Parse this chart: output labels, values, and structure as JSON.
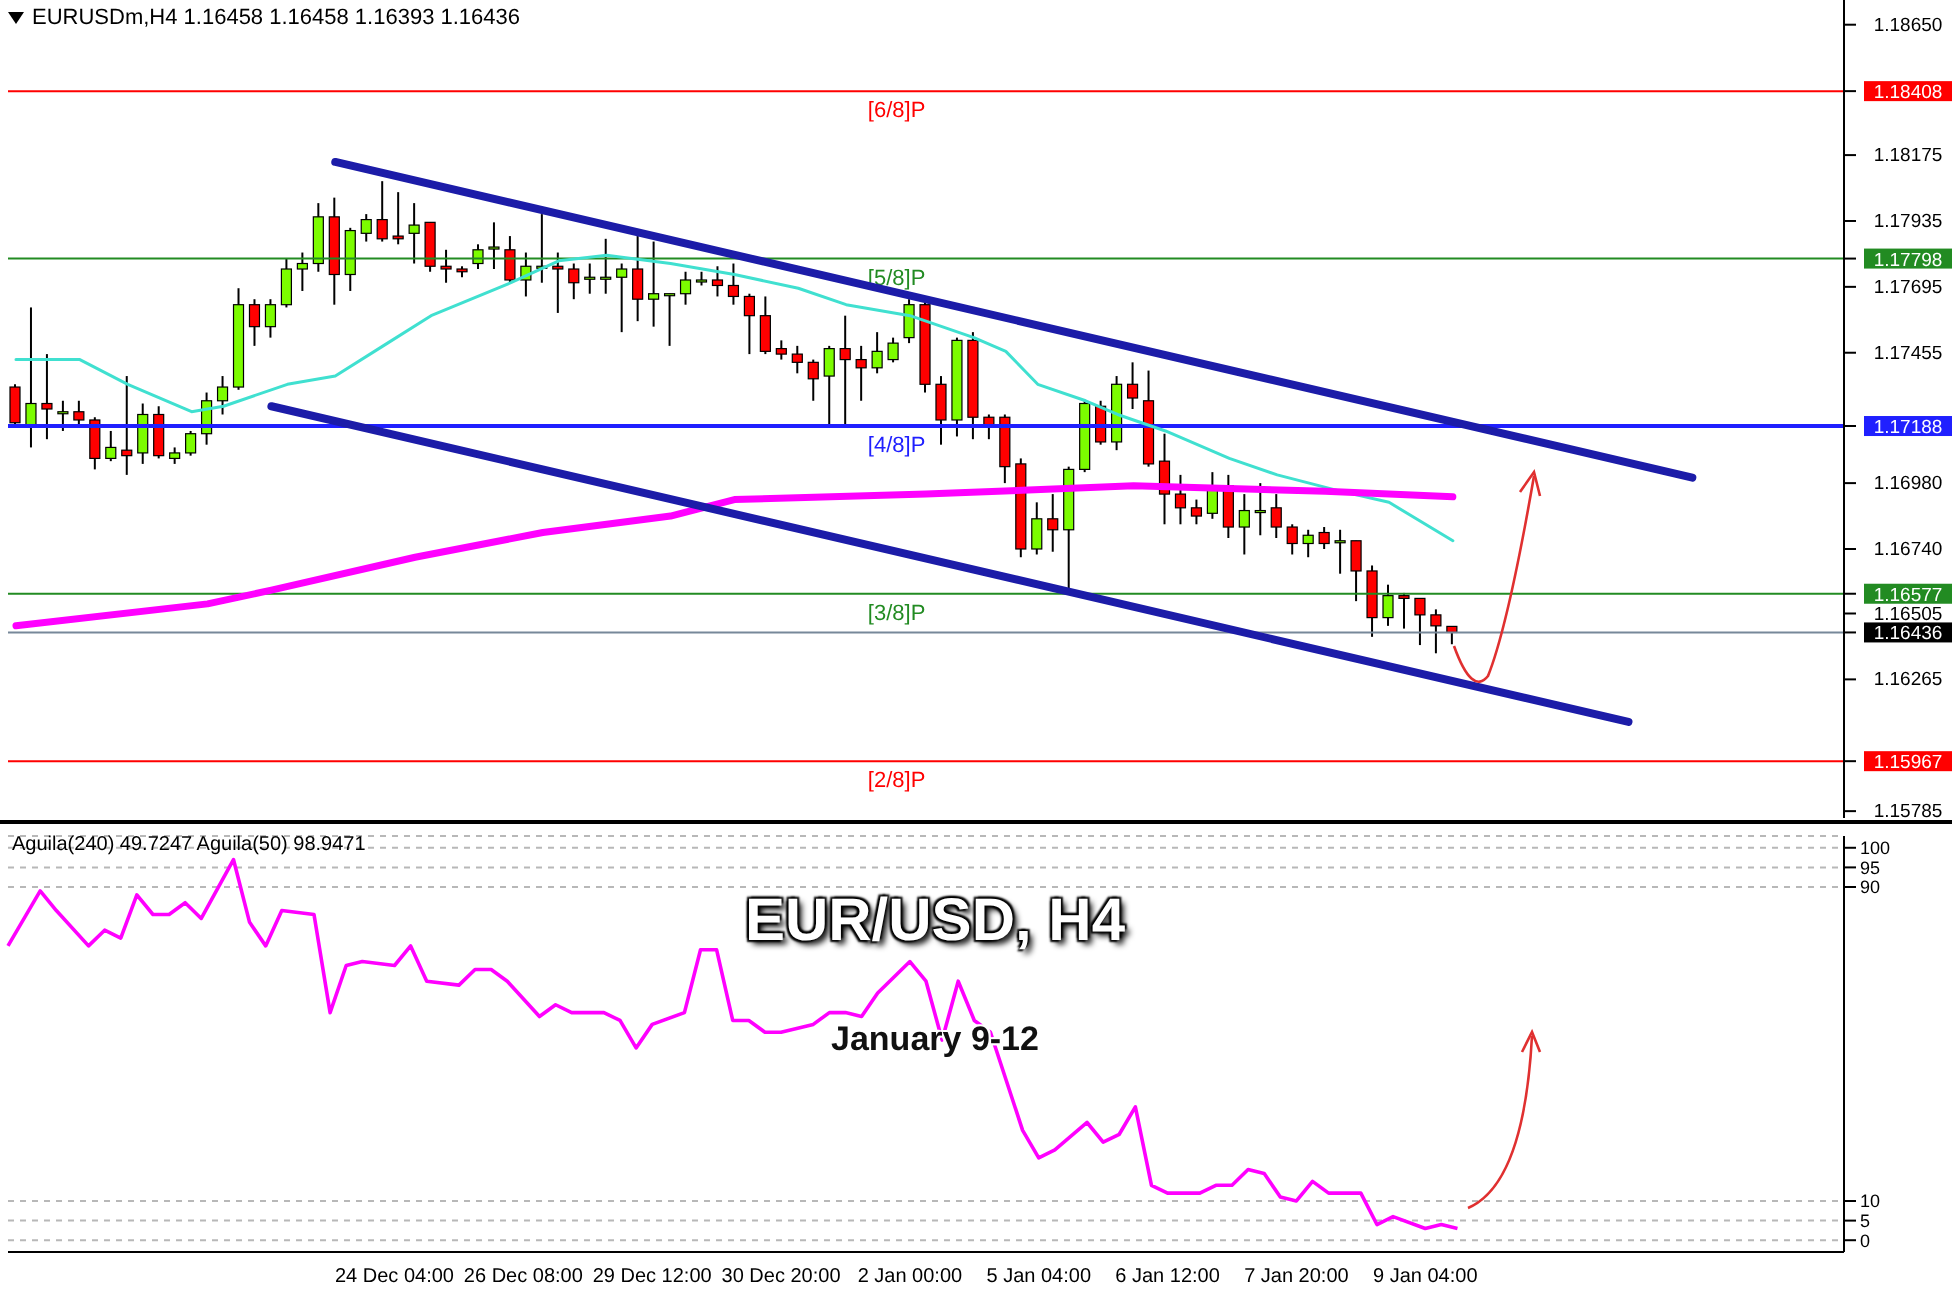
{
  "chart_data": [
    {
      "type": "candlestick",
      "title": "EURUSDm,H4  1.16458 1.16458 1.16393 1.16436",
      "tick_labels": "y",
      "grid": false,
      "legend": false,
      "categories": [
        null,
        null,
        null,
        null,
        null,
        null,
        null,
        null,
        null,
        null,
        null,
        null,
        null,
        null,
        null,
        null,
        null,
        null,
        null,
        null,
        null,
        null,
        null,
        null,
        null,
        null,
        null,
        null,
        null,
        null,
        null,
        null,
        null,
        null,
        null,
        null,
        null,
        null,
        null,
        null,
        null,
        null,
        null,
        null,
        null,
        null,
        null,
        null,
        null,
        null,
        null,
        null,
        null,
        null,
        null,
        null,
        null,
        null,
        null,
        null,
        null,
        null,
        null,
        null,
        null,
        null,
        null,
        null,
        null,
        null,
        null,
        null,
        null,
        null,
        null,
        null,
        null,
        null,
        null,
        null,
        null,
        null,
        null,
        null,
        null,
        null,
        null,
        null,
        null,
        null,
        null,
        null,
        null,
        null,
        null,
        null,
        null,
        null,
        null,
        null,
        null,
        null,
        null,
        null,
        null,
        null,
        null,
        null,
        null,
        null,
        null,
        null,
        null,
        null,
        null
      ],
      "ohlc": [
        [
          1.1733,
          1.1734,
          1.1719,
          1.172
        ],
        [
          1.1719,
          1.1762,
          1.1711,
          1.1727
        ],
        [
          1.1727,
          1.1745,
          1.1714,
          1.1725
        ],
        [
          1.1724,
          1.1728,
          1.1717,
          1.1724
        ],
        [
          1.1724,
          1.1728,
          1.1719,
          1.1721
        ],
        [
          1.1721,
          1.1722,
          1.1703,
          1.1707
        ],
        [
          1.1707,
          1.1717,
          1.1706,
          1.1711
        ],
        [
          1.171,
          1.1737,
          1.1701,
          1.1708
        ],
        [
          1.1709,
          1.1727,
          1.1705,
          1.1723
        ],
        [
          1.1723,
          1.1726,
          1.1707,
          1.1708
        ],
        [
          1.1707,
          1.1711,
          1.1705,
          1.1709
        ],
        [
          1.1709,
          1.1717,
          1.1708,
          1.1716
        ],
        [
          1.1716,
          1.1731,
          1.1712,
          1.1728
        ],
        [
          1.1728,
          1.1737,
          1.1723,
          1.1733
        ],
        [
          1.1733,
          1.1769,
          1.1732,
          1.1763
        ],
        [
          1.1763,
          1.1765,
          1.1748,
          1.1755
        ],
        [
          1.1755,
          1.1765,
          1.1751,
          1.1763
        ],
        [
          1.1763,
          1.178,
          1.1762,
          1.1776
        ],
        [
          1.1776,
          1.1782,
          1.1768,
          1.1778
        ],
        [
          1.1778,
          1.18,
          1.1775,
          1.1795
        ],
        [
          1.1795,
          1.1802,
          1.1763,
          1.1774
        ],
        [
          1.1774,
          1.1791,
          1.1768,
          1.179
        ],
        [
          1.1789,
          1.1796,
          1.1786,
          1.1794
        ],
        [
          1.1794,
          1.1808,
          1.1786,
          1.1787
        ],
        [
          1.1788,
          1.1804,
          1.1785,
          1.1787
        ],
        [
          1.1789,
          1.18,
          1.1778,
          1.1792
        ],
        [
          1.1793,
          1.1793,
          1.1775,
          1.1777
        ],
        [
          1.1777,
          1.1783,
          1.1771,
          1.1776
        ],
        [
          1.1776,
          1.1777,
          1.1773,
          1.1775
        ],
        [
          1.1778,
          1.1785,
          1.1776,
          1.1783
        ],
        [
          1.1784,
          1.1793,
          1.1776,
          1.1784
        ],
        [
          1.1783,
          1.1788,
          1.1771,
          1.1772
        ],
        [
          1.1772,
          1.1782,
          1.1766,
          1.1777
        ],
        [
          1.1777,
          1.1796,
          1.1771,
          1.1777
        ],
        [
          1.1777,
          1.1782,
          1.176,
          1.1776
        ],
        [
          1.1776,
          1.1778,
          1.1765,
          1.1771
        ],
        [
          1.1773,
          1.1778,
          1.1767,
          1.1773
        ],
        [
          1.1773,
          1.1787,
          1.1767,
          1.1773
        ],
        [
          1.1773,
          1.1778,
          1.1753,
          1.1776
        ],
        [
          1.1776,
          1.1788,
          1.1757,
          1.1765
        ],
        [
          1.1765,
          1.1786,
          1.1755,
          1.1767
        ],
        [
          1.1767,
          1.1767,
          1.1748,
          1.1767
        ],
        [
          1.1767,
          1.1775,
          1.1763,
          1.1772
        ],
        [
          1.1772,
          1.1775,
          1.177,
          1.1772
        ],
        [
          1.1772,
          1.1777,
          1.1766,
          1.177
        ],
        [
          1.177,
          1.1778,
          1.1763,
          1.1766
        ],
        [
          1.1766,
          1.1767,
          1.1745,
          1.1759
        ],
        [
          1.1759,
          1.1766,
          1.1745,
          1.1746
        ],
        [
          1.1747,
          1.175,
          1.1743,
          1.1745
        ],
        [
          1.1745,
          1.1748,
          1.1738,
          1.1742
        ],
        [
          1.1742,
          1.1743,
          1.1728,
          1.1736
        ],
        [
          1.1737,
          1.1748,
          1.1719,
          1.1747
        ],
        [
          1.1747,
          1.1759,
          1.1719,
          1.1743
        ],
        [
          1.1743,
          1.1748,
          1.1728,
          1.174
        ],
        [
          1.174,
          1.1753,
          1.1738,
          1.1746
        ],
        [
          1.1743,
          1.1751,
          1.1742,
          1.1749
        ],
        [
          1.1751,
          1.1765,
          1.1749,
          1.1763
        ],
        [
          1.1763,
          1.1765,
          1.1731,
          1.1734
        ],
        [
          1.1734,
          1.1737,
          1.1712,
          1.1721
        ],
        [
          1.1721,
          1.1751,
          1.1715,
          1.175
        ],
        [
          1.175,
          1.1753,
          1.1714,
          1.1722
        ],
        [
          1.1722,
          1.1723,
          1.1714,
          1.1719
        ],
        [
          1.1722,
          1.1723,
          1.1698,
          1.1704
        ],
        [
          1.1705,
          1.1707,
          1.1671,
          1.1674
        ],
        [
          1.1674,
          1.1691,
          1.1672,
          1.1685
        ],
        [
          1.1685,
          1.1694,
          1.1673,
          1.1681
        ],
        [
          1.1681,
          1.1704,
          1.1659,
          1.1703
        ],
        [
          1.1703,
          1.1728,
          1.1702,
          1.1727
        ],
        [
          1.1726,
          1.1728,
          1.1712,
          1.1713
        ],
        [
          1.1713,
          1.1737,
          1.171,
          1.1734
        ],
        [
          1.1734,
          1.1742,
          1.1725,
          1.1729
        ],
        [
          1.1728,
          1.1739,
          1.1704,
          1.1705
        ],
        [
          1.1706,
          1.1716,
          1.1683,
          1.1694
        ],
        [
          1.1694,
          1.1701,
          1.1683,
          1.1689
        ],
        [
          1.1689,
          1.1692,
          1.1683,
          1.1686
        ],
        [
          1.1687,
          1.1702,
          1.1685,
          1.1697
        ],
        [
          1.1697,
          1.1701,
          1.1678,
          1.1682
        ],
        [
          1.1682,
          1.1694,
          1.1672,
          1.1688
        ],
        [
          1.1688,
          1.1698,
          1.1679,
          1.1688
        ],
        [
          1.1689,
          1.1694,
          1.1678,
          1.1682
        ],
        [
          1.1682,
          1.1683,
          1.1672,
          1.1676
        ],
        [
          1.1676,
          1.1681,
          1.1671,
          1.1679
        ],
        [
          1.168,
          1.1682,
          1.1674,
          1.1676
        ],
        [
          1.1677,
          1.1681,
          1.1665,
          1.1677
        ],
        [
          1.1677,
          1.1677,
          1.1655,
          1.1666
        ],
        [
          1.1666,
          1.1668,
          1.1642,
          1.1649
        ],
        [
          1.1649,
          1.1661,
          1.1646,
          1.1657
        ],
        [
          1.1657,
          1.1658,
          1.1645,
          1.1656
        ],
        [
          1.1656,
          1.1656,
          1.1639,
          1.165
        ],
        [
          1.165,
          1.1652,
          1.1636,
          1.1646
        ],
        [
          1.16458,
          1.16458,
          1.16393,
          1.16436
        ],
        null,
        null,
        null,
        null,
        null,
        null,
        null,
        null,
        null,
        null,
        null,
        null,
        null,
        null,
        null,
        null,
        null,
        null,
        null,
        null,
        null,
        null,
        null,
        null
      ],
      "series": [
        {
          "type": "line",
          "color": "#40e0d0",
          "values": [
            1.1743,
            null,
            null,
            null,
            1.1743,
            null,
            null,
            1.1734,
            null,
            null,
            null,
            1.1724,
            null,
            1.1726,
            null,
            null,
            null,
            1.1734,
            null,
            null,
            1.1737,
            null,
            null,
            1.1748,
            null,
            null,
            1.1759,
            null,
            null,
            null,
            null,
            1.1771,
            null,
            null,
            1.1779,
            null,
            null,
            1.1781,
            null,
            null,
            null,
            1.1778,
            null,
            null,
            null,
            1.1774,
            null,
            null,
            null,
            1.1769,
            null,
            null,
            1.1763,
            null,
            null,
            null,
            1.1759,
            null,
            null,
            null,
            1.1751,
            null,
            1.1746,
            null,
            1.1734,
            null,
            null,
            1.1728,
            null,
            1.1723,
            null,
            null,
            1.1717,
            null,
            null,
            null,
            1.1707,
            null,
            null,
            1.1701,
            null,
            null,
            null,
            1.1695,
            null,
            null,
            1.1691,
            null,
            null,
            null,
            1.1677,
            null,
            null,
            null,
            null,
            null,
            null,
            null,
            null,
            null,
            null,
            null,
            null,
            null,
            null,
            null,
            null,
            null,
            null,
            null,
            null,
            null,
            null,
            null,
            null
          ]
        },
        {
          "type": "line",
          "color": "#ff00ff",
          "values": [
            1.1646,
            null,
            null,
            null,
            null,
            null,
            null,
            null,
            null,
            null,
            null,
            null,
            1.1654,
            null,
            null,
            null,
            1.1659,
            null,
            null,
            null,
            null,
            null,
            null,
            null,
            null,
            1.1671,
            null,
            null,
            null,
            null,
            null,
            null,
            null,
            1.168,
            null,
            null,
            null,
            null,
            null,
            null,
            null,
            1.1686,
            null,
            null,
            null,
            1.1692,
            null,
            null,
            null,
            null,
            null,
            null,
            null,
            null,
            null,
            null,
            null,
            1.1694,
            null,
            null,
            null,
            null,
            null,
            null,
            null,
            null,
            null,
            null,
            null,
            null,
            1.1697,
            null,
            null,
            null,
            null,
            null,
            null,
            null,
            null,
            null,
            null,
            null,
            1.1695,
            null,
            null,
            null,
            null,
            null,
            null,
            null,
            1.1693,
            null,
            null,
            null,
            null,
            null,
            null,
            null,
            null,
            null,
            null,
            null,
            null,
            null,
            null,
            null,
            null,
            null,
            null,
            null,
            null,
            null,
            null,
            null,
            null
          ]
        },
        {
          "type": "line",
          "color": "#1c1ca8",
          "values": [
            null,
            null,
            null,
            null,
            null,
            null,
            null,
            null,
            null,
            null,
            null,
            null,
            null,
            null,
            null,
            null,
            null,
            null,
            null,
            null,
            1.1815,
            null,
            null,
            null,
            null,
            null,
            null,
            null,
            null,
            null,
            null,
            null,
            null,
            null,
            null,
            null,
            null,
            null,
            null,
            null,
            null,
            null,
            null,
            null,
            null,
            null,
            null,
            null,
            null,
            null,
            null,
            null,
            null,
            null,
            null,
            null,
            null,
            null,
            null,
            null,
            null,
            null,
            null,
            null,
            null,
            null,
            null,
            null,
            null,
            null,
            null,
            null,
            null,
            null,
            null,
            null,
            null,
            null,
            null,
            null,
            null,
            null,
            null,
            null,
            null,
            null,
            null,
            null,
            null,
            null,
            null,
            null,
            null,
            null,
            null,
            null,
            null,
            null,
            null,
            null,
            null,
            null,
            null,
            null,
            null,
            1.17,
            null,
            null,
            null,
            null,
            null,
            null,
            null,
            null,
            null
          ]
        },
        {
          "type": "line",
          "color": "#1c1ca8",
          "values": [
            null,
            null,
            null,
            null,
            null,
            null,
            null,
            null,
            null,
            null,
            null,
            null,
            null,
            null,
            null,
            null,
            1.1726,
            null,
            null,
            null,
            null,
            null,
            null,
            null,
            null,
            null,
            null,
            null,
            null,
            null,
            null,
            null,
            null,
            null,
            null,
            null,
            null,
            null,
            null,
            null,
            null,
            null,
            null,
            null,
            null,
            null,
            null,
            null,
            null,
            null,
            null,
            null,
            null,
            null,
            null,
            null,
            null,
            null,
            null,
            null,
            null,
            null,
            null,
            null,
            null,
            null,
            null,
            null,
            null,
            null,
            null,
            null,
            null,
            null,
            null,
            null,
            null,
            null,
            null,
            null,
            null,
            null,
            null,
            null,
            null,
            null,
            null,
            null,
            null,
            null,
            null,
            null,
            null,
            null,
            null,
            null,
            null,
            null,
            null,
            null,
            null,
            1.1611,
            null,
            null,
            null,
            null,
            null,
            null,
            null,
            null,
            null,
            null,
            null,
            null,
            null
          ]
        }
      ],
      "ylim": [
        1.1576,
        1.1874
      ],
      "yticks": [
        {
          "value": 1.1865,
          "label": "1.18650"
        },
        1.18408,
        1.18175,
        1.17935,
        1.17798,
        1.17695,
        1.17455,
        1.17188,
        {
          "value": 1.1698,
          "label": "1.16980"
        },
        {
          "value": 1.1674,
          "label": "1.16740"
        },
        1.16577,
        1.16505,
        1.16436,
        1.16265,
        1.15967,
        1.15785
      ],
      "ref_lines": [
        {
          "axis": "y",
          "value": 1.18408,
          "label": "[6/8]P",
          "color": "#ff0000"
        },
        {
          "axis": "y",
          "value": 1.17798,
          "label": "[5/8]P",
          "color": "#228b22"
        },
        {
          "axis": "y",
          "value": 1.17188,
          "label": "[4/8]P",
          "color": "#2020ff"
        },
        {
          "axis": "y",
          "value": 1.16577,
          "label": "[3/8]P",
          "color": "#228b22"
        },
        {
          "axis": "y",
          "value": 1.16436,
          "label": null,
          "color": "#778899"
        },
        {
          "axis": "y",
          "value": 1.15967,
          "label": "[2/8]P",
          "color": "#ff0000"
        }
      ]
    },
    {
      "type": "line",
      "title": "Aguila(240) 49.7247   Aguila(50) 98.9471",
      "grid": "y",
      "legend": false,
      "categories": [
        null,
        null,
        null,
        null,
        null,
        null,
        null,
        null,
        null,
        null,
        null,
        null,
        null,
        null,
        null,
        null,
        null,
        null,
        null,
        null,
        null,
        null,
        null,
        null,
        "24 Dec 04:00",
        null,
        null,
        null,
        null,
        null,
        null,
        null,
        "26 Dec 08:00",
        null,
        null,
        null,
        null,
        null,
        null,
        null,
        "29 Dec 12:00",
        null,
        null,
        null,
        null,
        null,
        null,
        null,
        "30 Dec 20:00",
        null,
        null,
        null,
        null,
        null,
        null,
        null,
        "2 Jan 00:00",
        null,
        null,
        null,
        null,
        null,
        null,
        null,
        "5 Jan 04:00",
        null,
        null,
        null,
        null,
        null,
        null,
        null,
        "6 Jan 12:00",
        null,
        null,
        null,
        null,
        null,
        null,
        null,
        "7 Jan 20:00",
        null,
        null,
        null,
        null,
        null,
        null,
        null,
        "9 Jan 04:00",
        null,
        null,
        null,
        null,
        null,
        null,
        null,
        null,
        null,
        null,
        null,
        null,
        null,
        null,
        null,
        null,
        null,
        null,
        null,
        null,
        null,
        null,
        null,
        null,
        null,
        null
      ],
      "series": [
        {
          "color": "#ff00ff",
          "values": [
            75,
            null,
            89,
            84,
            null,
            75,
            79,
            77,
            88,
            83,
            83,
            86,
            82,
            null,
            97,
            81,
            75,
            84,
            null,
            83,
            58,
            70,
            71,
            null,
            70,
            75,
            66,
            null,
            65,
            69,
            69,
            66,
            null,
            57,
            60,
            58,
            null,
            58,
            56,
            49,
            55,
            null,
            58,
            74,
            74,
            56,
            56,
            53,
            53,
            null,
            55,
            58,
            58,
            57,
            63,
            null,
            71,
            66,
            51,
            66,
            56,
            53,
            null,
            28,
            21,
            23,
            null,
            30,
            25,
            27,
            34,
            14,
            12,
            null,
            12,
            14,
            14,
            18,
            17,
            11,
            10,
            15,
            12,
            null,
            12,
            4,
            6,
            null,
            3,
            4,
            3,
            null,
            null,
            null,
            null,
            null,
            null,
            null,
            null,
            null,
            null,
            null,
            null,
            null,
            null,
            null,
            null,
            null,
            null,
            null,
            null,
            null,
            null,
            null,
            null
          ]
        }
      ],
      "ylim": [
        -3,
        103
      ],
      "yticks": [
        0,
        5,
        10,
        90,
        95,
        100
      ],
      "annotations": [
        "EUR/USD, H4",
        "January 9-12"
      ]
    }
  ]
}
